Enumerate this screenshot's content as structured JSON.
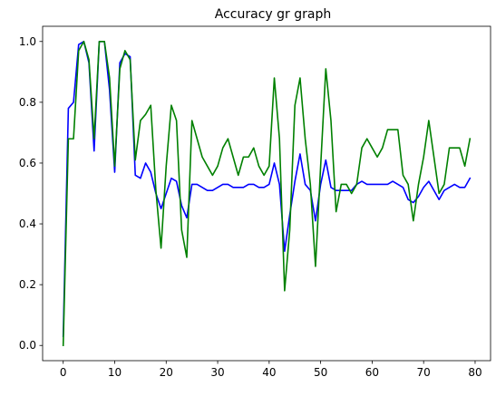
{
  "chart_data": {
    "type": "line",
    "title": "Accuracy gr graph",
    "xlabel": "",
    "ylabel": "",
    "xlim": [
      -4,
      83
    ],
    "ylim": [
      -0.05,
      1.05
    ],
    "x_ticks": [
      0,
      10,
      20,
      30,
      40,
      50,
      60,
      70,
      80
    ],
    "y_ticks": [
      0.0,
      0.2,
      0.4,
      0.6,
      0.8,
      1.0
    ],
    "x_tick_labels": [
      "0",
      "10",
      "20",
      "30",
      "40",
      "50",
      "60",
      "70",
      "80"
    ],
    "y_tick_labels": [
      "0.0",
      "0.2",
      "0.4",
      "0.6",
      "0.8",
      "1.0"
    ],
    "grid": false,
    "legend": "none",
    "series": [
      {
        "color": "#0000ff",
        "x": [
          0,
          1,
          2,
          3,
          4,
          5,
          6,
          7,
          8,
          9,
          10,
          11,
          12,
          13,
          14,
          15,
          16,
          17,
          18,
          19,
          20,
          21,
          22,
          23,
          24,
          25,
          26,
          27,
          28,
          29,
          30,
          31,
          32,
          33,
          34,
          35,
          36,
          37,
          38,
          39,
          40,
          41,
          42,
          43,
          44,
          45,
          46,
          47,
          48,
          49,
          50,
          51,
          52,
          53,
          54,
          55,
          56,
          57,
          58,
          59,
          60,
          61,
          62,
          63,
          64,
          65,
          66,
          67,
          68,
          69,
          70,
          71,
          72,
          73,
          74,
          75,
          76,
          77,
          78,
          79
        ],
        "values": [
          0.03,
          0.78,
          0.8,
          0.99,
          1.0,
          0.93,
          0.64,
          1.0,
          1.0,
          0.84,
          0.57,
          0.93,
          0.96,
          0.95,
          0.56,
          0.55,
          0.6,
          0.57,
          0.5,
          0.45,
          0.5,
          0.55,
          0.54,
          0.46,
          0.42,
          0.53,
          0.53,
          0.52,
          0.51,
          0.51,
          0.52,
          0.53,
          0.53,
          0.52,
          0.52,
          0.52,
          0.53,
          0.53,
          0.52,
          0.52,
          0.53,
          0.6,
          0.53,
          0.31,
          0.43,
          0.54,
          0.63,
          0.53,
          0.51,
          0.41,
          0.53,
          0.61,
          0.52,
          0.51,
          0.51,
          0.51,
          0.51,
          0.53,
          0.54,
          0.53,
          0.53,
          0.53,
          0.53,
          0.53,
          0.54,
          0.53,
          0.52,
          0.48,
          0.47,
          0.49,
          0.52,
          0.54,
          0.51,
          0.48,
          0.51,
          0.52,
          0.53,
          0.52,
          0.52,
          0.55
        ]
      },
      {
        "color": "#008000",
        "x": [
          0,
          1,
          2,
          3,
          4,
          5,
          6,
          7,
          8,
          9,
          10,
          11,
          12,
          13,
          14,
          15,
          16,
          17,
          18,
          19,
          20,
          21,
          22,
          23,
          24,
          25,
          26,
          27,
          28,
          29,
          30,
          31,
          32,
          33,
          34,
          35,
          36,
          37,
          38,
          39,
          40,
          41,
          42,
          43,
          44,
          45,
          46,
          47,
          48,
          49,
          50,
          51,
          52,
          53,
          54,
          55,
          56,
          57,
          58,
          59,
          60,
          61,
          62,
          63,
          64,
          65,
          66,
          67,
          68,
          69,
          70,
          71,
          72,
          73,
          74,
          75,
          76,
          77,
          78,
          79
        ],
        "values": [
          0.0,
          0.68,
          0.68,
          0.97,
          1.0,
          0.94,
          0.68,
          1.0,
          1.0,
          0.88,
          0.59,
          0.91,
          0.97,
          0.94,
          0.61,
          0.74,
          0.76,
          0.79,
          0.51,
          0.32,
          0.59,
          0.79,
          0.74,
          0.38,
          0.29,
          0.74,
          0.68,
          0.62,
          0.59,
          0.56,
          0.59,
          0.65,
          0.68,
          0.62,
          0.56,
          0.62,
          0.62,
          0.65,
          0.59,
          0.56,
          0.59,
          0.88,
          0.68,
          0.18,
          0.38,
          0.79,
          0.88,
          0.68,
          0.53,
          0.26,
          0.59,
          0.91,
          0.74,
          0.44,
          0.53,
          0.53,
          0.5,
          0.53,
          0.65,
          0.68,
          0.65,
          0.62,
          0.65,
          0.71,
          0.71,
          0.71,
          0.56,
          0.53,
          0.41,
          0.53,
          0.62,
          0.74,
          0.62,
          0.5,
          0.53,
          0.65,
          0.65,
          0.65,
          0.59,
          0.68
        ]
      }
    ]
  }
}
